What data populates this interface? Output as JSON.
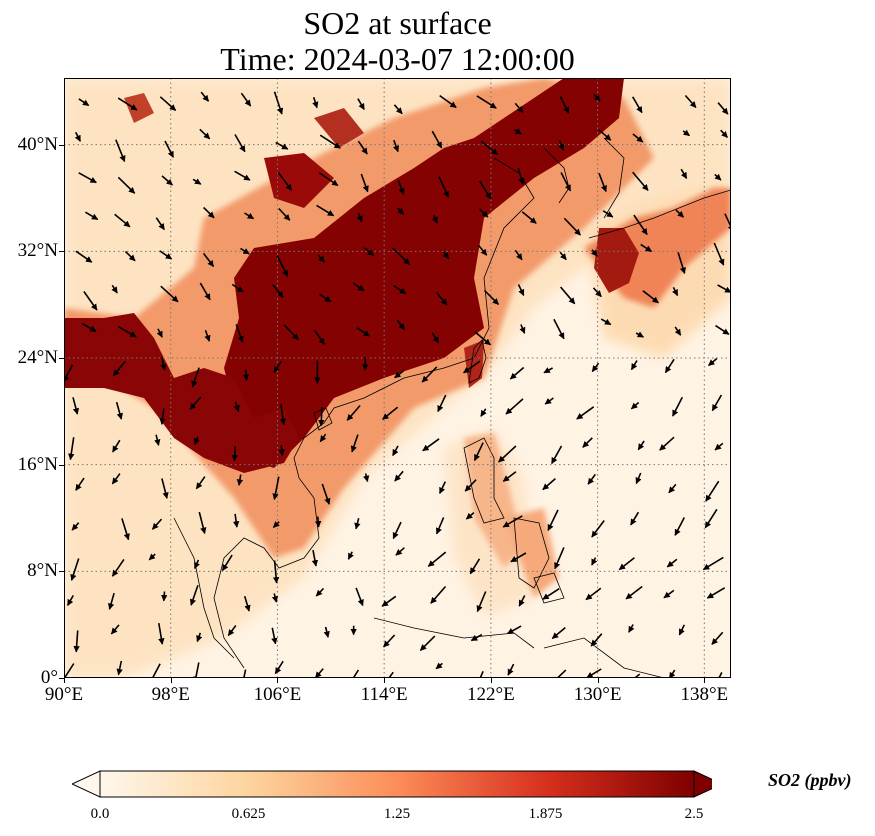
{
  "title": {
    "line1": "SO2 at surface",
    "line2": "Time: 2024-03-07 12:00:00"
  },
  "map": {
    "lon_range": [
      90,
      140
    ],
    "lat_range": [
      0,
      45
    ],
    "lat_ticks": [
      {
        "value": 40,
        "label": "40°N"
      },
      {
        "value": 32,
        "label": "32°N"
      },
      {
        "value": 24,
        "label": "24°N"
      },
      {
        "value": 16,
        "label": "16°N"
      },
      {
        "value": 8,
        "label": "8°N"
      },
      {
        "value": 0,
        "label": "0°"
      }
    ],
    "lon_ticks": [
      {
        "value": 90,
        "label": "90°E"
      },
      {
        "value": 98,
        "label": "98°E"
      },
      {
        "value": 106,
        "label": "106°E"
      },
      {
        "value": 114,
        "label": "114°E"
      },
      {
        "value": 122,
        "label": "122°E"
      },
      {
        "value": 130,
        "label": "130°E"
      },
      {
        "value": 138,
        "label": "138°E"
      }
    ],
    "gridlines": "dotted"
  },
  "colorbar": {
    "label": "SO2 (ppbv)",
    "ticks": [
      "0.0",
      "0.625",
      "1.25",
      "1.875",
      "2.5"
    ],
    "range": [
      0,
      2.5
    ],
    "colormap": [
      "#fff7ec",
      "#fdd49e",
      "#fc8d59",
      "#d7301f",
      "#7f0000"
    ],
    "extend": "both"
  }
}
